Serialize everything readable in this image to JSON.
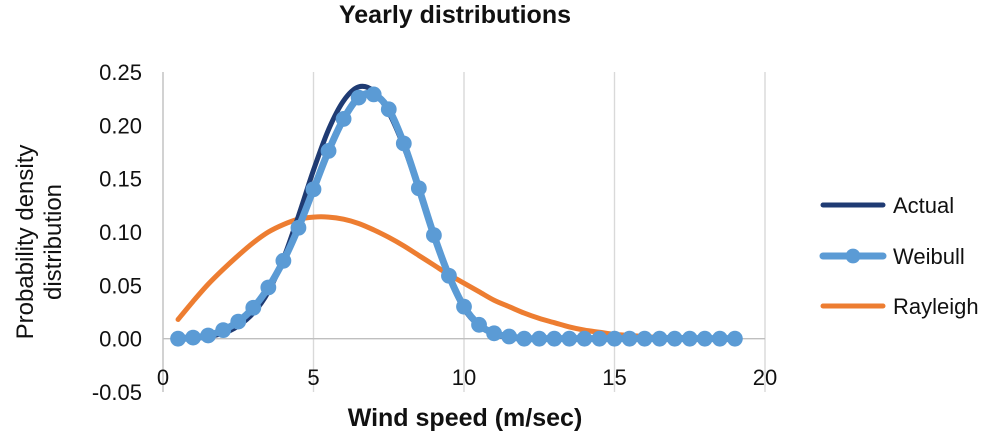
{
  "chart_data": {
    "type": "line",
    "title": "Yearly distributions",
    "xlabel": "Wind speed (m/sec)",
    "ylabel": [
      "Probability density",
      "distribution"
    ],
    "xlim": [
      0,
      20
    ],
    "ylim": [
      -0.05,
      0.25
    ],
    "xticks": [
      0,
      5,
      10,
      15,
      20
    ],
    "yticks": [
      -0.05,
      0.0,
      0.05,
      0.1,
      0.15,
      0.2,
      0.25
    ],
    "xtick_labels": [
      "0",
      "5",
      "10",
      "15",
      "20"
    ],
    "ytick_labels": [
      "-0.05",
      "0.00",
      "0.05",
      "0.10",
      "0.15",
      "0.20",
      "0.25"
    ],
    "grid": "vertical",
    "legend_position": "right",
    "series": [
      {
        "name": "Actual",
        "color": "#1f3b73",
        "marker": "none",
        "x": [
          0.5,
          1.0,
          1.5,
          2.0,
          2.5,
          3.0,
          3.5,
          4.0,
          4.5,
          5.0,
          5.5,
          6.0,
          6.5,
          7.0,
          7.5,
          8.0,
          8.5,
          9.0,
          9.5,
          10.0,
          10.5,
          11.0,
          11.5,
          12.0,
          13.0,
          14.0,
          15.0,
          16.0,
          17.0,
          18.0,
          19.0
        ],
        "y": [
          0.0,
          0.0,
          0.002,
          0.005,
          0.012,
          0.024,
          0.044,
          0.075,
          0.115,
          0.158,
          0.196,
          0.223,
          0.236,
          0.232,
          0.212,
          0.18,
          0.14,
          0.096,
          0.058,
          0.028,
          0.012,
          0.004,
          0.001,
          0.0,
          0.0,
          0.0,
          0.0,
          0.0,
          0.0,
          0.0,
          0.0
        ]
      },
      {
        "name": "Weibull",
        "color": "#5b9bd5",
        "marker": "circle",
        "x": [
          0.5,
          1.0,
          1.5,
          2.0,
          2.5,
          3.0,
          3.5,
          4.0,
          4.5,
          5.0,
          5.5,
          6.0,
          6.5,
          7.0,
          7.5,
          8.0,
          8.5,
          9.0,
          9.5,
          10.0,
          10.5,
          11.0,
          11.5,
          12.0,
          12.5,
          13.0,
          13.5,
          14.0,
          14.5,
          15.0,
          15.5,
          16.0,
          16.5,
          17.0,
          17.5,
          18.0,
          18.5,
          19.0
        ],
        "y": [
          0.0,
          0.001,
          0.003,
          0.008,
          0.016,
          0.029,
          0.048,
          0.073,
          0.104,
          0.14,
          0.176,
          0.206,
          0.226,
          0.229,
          0.215,
          0.183,
          0.141,
          0.097,
          0.059,
          0.03,
          0.013,
          0.005,
          0.002,
          0.0,
          0.0,
          0.0,
          0.0,
          0.0,
          0.0,
          0.0,
          0.0,
          0.0,
          0.0,
          0.0,
          0.0,
          0.0,
          0.0,
          0.0
        ]
      },
      {
        "name": "Rayleigh",
        "color": "#ed7d31",
        "marker": "none",
        "x": [
          0.5,
          1.0,
          1.5,
          2.0,
          2.5,
          3.0,
          3.5,
          4.0,
          4.5,
          5.0,
          5.5,
          6.0,
          6.5,
          7.0,
          7.5,
          8.0,
          8.5,
          9.0,
          9.5,
          10.0,
          10.5,
          11.0,
          11.5,
          12.0,
          12.5,
          13.0,
          13.5,
          14.0,
          14.5,
          15.0,
          15.5,
          16.0,
          16.5,
          17.0,
          17.5,
          18.0,
          18.5,
          19.0
        ],
        "y": [
          0.018,
          0.035,
          0.051,
          0.065,
          0.078,
          0.09,
          0.1,
          0.107,
          0.112,
          0.114,
          0.114,
          0.112,
          0.108,
          0.102,
          0.095,
          0.087,
          0.078,
          0.069,
          0.06,
          0.052,
          0.044,
          0.036,
          0.03,
          0.024,
          0.019,
          0.015,
          0.011,
          0.008,
          0.006,
          0.004,
          0.003,
          0.002,
          0.001,
          0.001,
          0.001,
          0.0,
          0.0,
          0.0
        ]
      }
    ]
  }
}
